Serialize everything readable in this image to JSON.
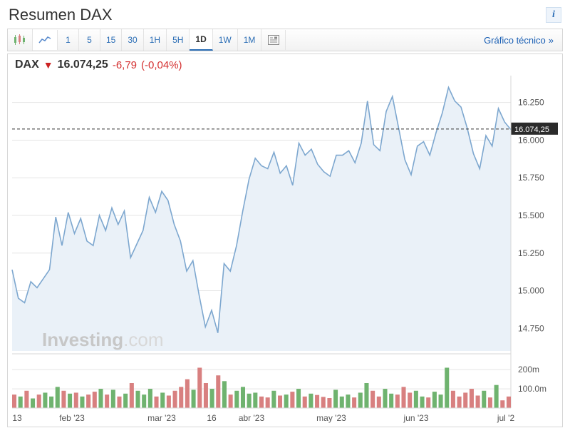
{
  "header": {
    "title": "Resumen DAX"
  },
  "toolbar": {
    "intervals": [
      "1",
      "5",
      "15",
      "30",
      "1H",
      "5H",
      "1D",
      "1W",
      "1M"
    ],
    "active_interval": "1D",
    "technical_link": "Gráfico técnico"
  },
  "quote": {
    "symbol": "DAX",
    "direction": "down",
    "price": "16.074,25",
    "change_abs": "-6,79",
    "change_pct": "(-0,04%)"
  },
  "price_chart": {
    "type": "area",
    "line_color": "#7da7cf",
    "fill_color": "#eaf1f8",
    "grid_color": "#e5e5e5",
    "background_color": "#ffffff",
    "current_line_style": "dash",
    "current_value_label": "16.074,25",
    "ylim": [
      14600,
      16400
    ],
    "yticks": [
      14750,
      15000,
      15250,
      15500,
      15750,
      16000,
      16250
    ],
    "yticklabels": [
      "14.750",
      "15.000",
      "15.250",
      "15.500",
      "15.750",
      "16.000",
      "16.250"
    ],
    "xticklabels": [
      "13",
      "feb '23",
      "mar '23",
      "16",
      "abr '23",
      "may '23",
      "jun '23",
      "jul '2"
    ],
    "xtick_positions": [
      0.01,
      0.12,
      0.3,
      0.4,
      0.48,
      0.64,
      0.81,
      0.99
    ],
    "series": [
      15140,
      14950,
      14920,
      15060,
      15020,
      15080,
      15140,
      15490,
      15300,
      15520,
      15380,
      15480,
      15330,
      15300,
      15500,
      15400,
      15550,
      15440,
      15530,
      15220,
      15310,
      15400,
      15620,
      15520,
      15660,
      15600,
      15440,
      15330,
      15130,
      15200,
      14970,
      14760,
      14870,
      14720,
      15180,
      15130,
      15300,
      15530,
      15740,
      15880,
      15830,
      15810,
      15920,
      15780,
      15830,
      15700,
      15980,
      15900,
      15940,
      15840,
      15790,
      15760,
      15900,
      15900,
      15930,
      15850,
      15980,
      16260,
      15970,
      15930,
      16190,
      16290,
      16080,
      15870,
      15770,
      15960,
      15990,
      15900,
      16050,
      16180,
      16350,
      16260,
      16220,
      16080,
      15910,
      15810,
      16030,
      15960,
      16210,
      16120,
      16070
    ]
  },
  "volume_chart": {
    "type": "bar",
    "up_color": "#6fb36f",
    "down_color": "#d88080",
    "yticks": [
      100,
      200
    ],
    "yticklabels": [
      "100.0m",
      "200m"
    ],
    "ylim": [
      0,
      260
    ],
    "bars": [
      {
        "v": 70,
        "c": "d"
      },
      {
        "v": 60,
        "c": "u"
      },
      {
        "v": 90,
        "c": "d"
      },
      {
        "v": 50,
        "c": "u"
      },
      {
        "v": 70,
        "c": "d"
      },
      {
        "v": 80,
        "c": "u"
      },
      {
        "v": 60,
        "c": "u"
      },
      {
        "v": 110,
        "c": "u"
      },
      {
        "v": 90,
        "c": "d"
      },
      {
        "v": 75,
        "c": "u"
      },
      {
        "v": 80,
        "c": "d"
      },
      {
        "v": 60,
        "c": "u"
      },
      {
        "v": 70,
        "c": "d"
      },
      {
        "v": 85,
        "c": "d"
      },
      {
        "v": 100,
        "c": "u"
      },
      {
        "v": 70,
        "c": "d"
      },
      {
        "v": 95,
        "c": "u"
      },
      {
        "v": 60,
        "c": "d"
      },
      {
        "v": 75,
        "c": "u"
      },
      {
        "v": 130,
        "c": "d"
      },
      {
        "v": 90,
        "c": "u"
      },
      {
        "v": 70,
        "c": "u"
      },
      {
        "v": 100,
        "c": "u"
      },
      {
        "v": 60,
        "c": "d"
      },
      {
        "v": 80,
        "c": "u"
      },
      {
        "v": 65,
        "c": "d"
      },
      {
        "v": 90,
        "c": "d"
      },
      {
        "v": 110,
        "c": "d"
      },
      {
        "v": 150,
        "c": "d"
      },
      {
        "v": 95,
        "c": "u"
      },
      {
        "v": 210,
        "c": "d"
      },
      {
        "v": 130,
        "c": "d"
      },
      {
        "v": 100,
        "c": "u"
      },
      {
        "v": 170,
        "c": "d"
      },
      {
        "v": 140,
        "c": "u"
      },
      {
        "v": 70,
        "c": "d"
      },
      {
        "v": 90,
        "c": "u"
      },
      {
        "v": 110,
        "c": "u"
      },
      {
        "v": 75,
        "c": "u"
      },
      {
        "v": 80,
        "c": "u"
      },
      {
        "v": 60,
        "c": "d"
      },
      {
        "v": 55,
        "c": "d"
      },
      {
        "v": 90,
        "c": "u"
      },
      {
        "v": 65,
        "c": "d"
      },
      {
        "v": 70,
        "c": "u"
      },
      {
        "v": 85,
        "c": "d"
      },
      {
        "v": 100,
        "c": "u"
      },
      {
        "v": 60,
        "c": "d"
      },
      {
        "v": 75,
        "c": "u"
      },
      {
        "v": 68,
        "c": "d"
      },
      {
        "v": 58,
        "c": "d"
      },
      {
        "v": 52,
        "c": "d"
      },
      {
        "v": 95,
        "c": "u"
      },
      {
        "v": 60,
        "c": "u"
      },
      {
        "v": 70,
        "c": "u"
      },
      {
        "v": 55,
        "c": "d"
      },
      {
        "v": 80,
        "c": "u"
      },
      {
        "v": 130,
        "c": "u"
      },
      {
        "v": 90,
        "c": "d"
      },
      {
        "v": 60,
        "c": "d"
      },
      {
        "v": 100,
        "c": "u"
      },
      {
        "v": 75,
        "c": "u"
      },
      {
        "v": 70,
        "c": "d"
      },
      {
        "v": 110,
        "c": "d"
      },
      {
        "v": 80,
        "c": "d"
      },
      {
        "v": 90,
        "c": "u"
      },
      {
        "v": 60,
        "c": "u"
      },
      {
        "v": 55,
        "c": "d"
      },
      {
        "v": 85,
        "c": "u"
      },
      {
        "v": 70,
        "c": "u"
      },
      {
        "v": 210,
        "c": "u"
      },
      {
        "v": 90,
        "c": "d"
      },
      {
        "v": 60,
        "c": "d"
      },
      {
        "v": 80,
        "c": "d"
      },
      {
        "v": 100,
        "c": "d"
      },
      {
        "v": 65,
        "c": "d"
      },
      {
        "v": 90,
        "c": "u"
      },
      {
        "v": 55,
        "c": "d"
      },
      {
        "v": 120,
        "c": "u"
      },
      {
        "v": 40,
        "c": "d"
      },
      {
        "v": 60,
        "c": "d"
      }
    ]
  },
  "watermark": {
    "brand": "Investing",
    "suffix": ".com"
  }
}
